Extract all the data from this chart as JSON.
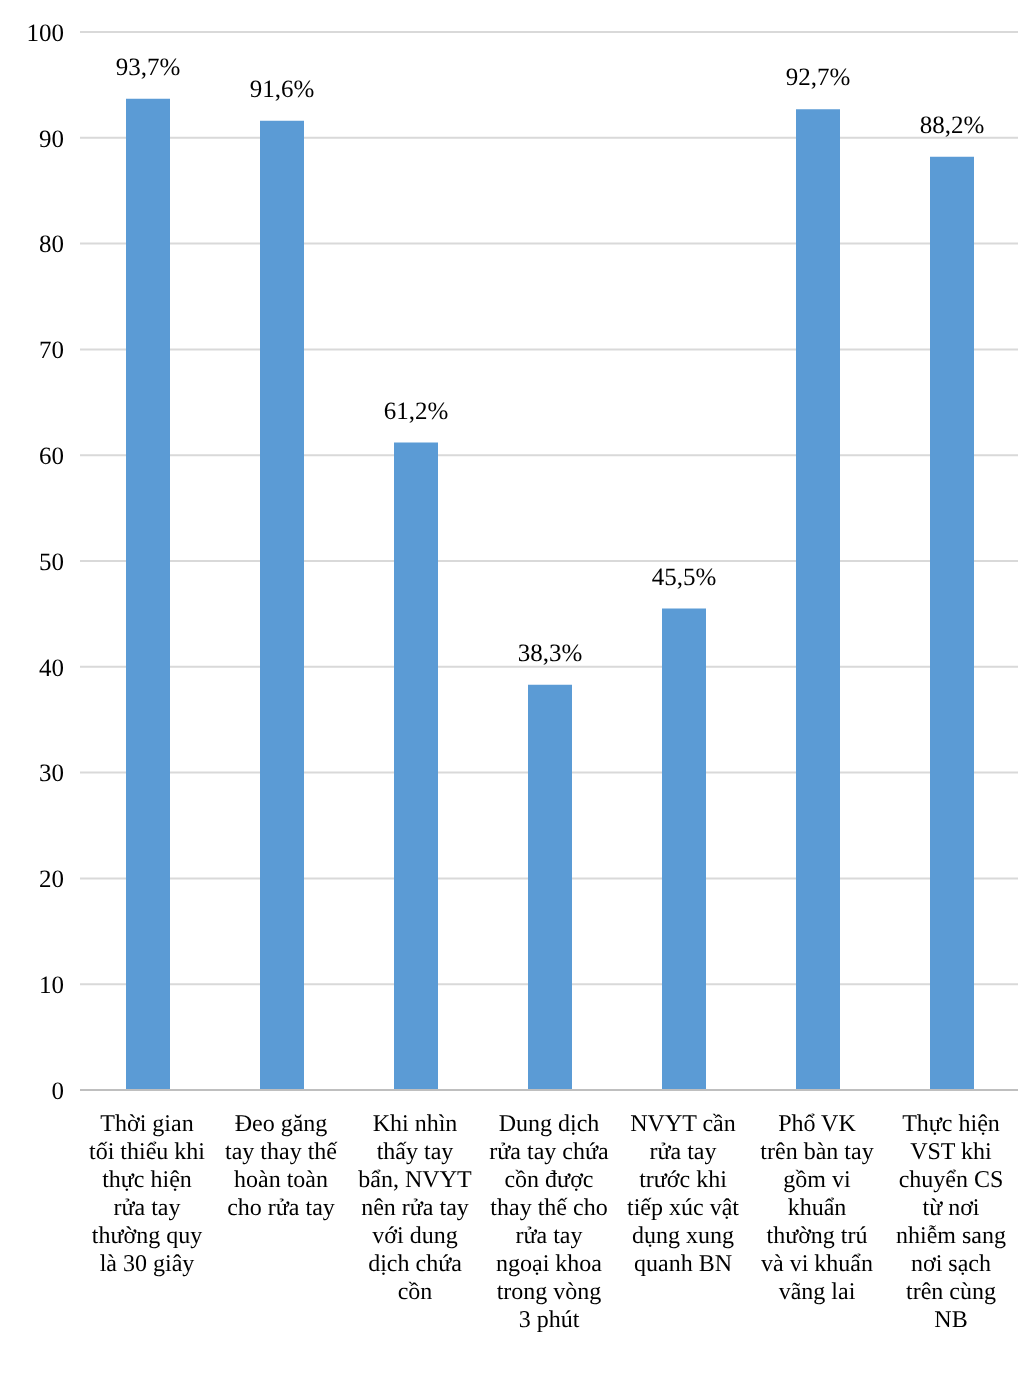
{
  "chart_data": {
    "type": "bar",
    "categories": [
      "Thời gian tối thiểu khi thực hiện rửa tay thường quy là 30 giây",
      "Đeo găng tay thay thế hoàn toàn cho rửa tay",
      "Khi nhìn thấy tay bẩn, NVYT nên rửa tay với dung dịch chứa cồn",
      "Dung dịch rửa tay chứa cồn được thay thế cho rửa tay ngoại khoa trong vòng 3 phút",
      "NVYT cần rửa tay trước khi tiếp xúc vật dụng xung quanh BN",
      "Phổ VK trên bàn tay gồm vi khuẩn thường trú và vi khuẩn vãng lai",
      "Thực hiện VST khi chuyển CS từ nơi nhiễm sang nơi sạch trên cùng NB"
    ],
    "values": [
      93.7,
      91.6,
      61.2,
      38.3,
      45.5,
      92.7,
      88.2
    ],
    "value_labels": [
      "93,7%",
      "91,6%",
      "61,2%",
      "38,3%",
      "45,5%",
      "92,7%",
      "88,2%"
    ],
    "color": "#5b9bd5",
    "ylim": [
      0,
      100
    ],
    "yticks": [
      0,
      10,
      20,
      30,
      40,
      50,
      60,
      70,
      80,
      90,
      100
    ],
    "grid": "y"
  }
}
